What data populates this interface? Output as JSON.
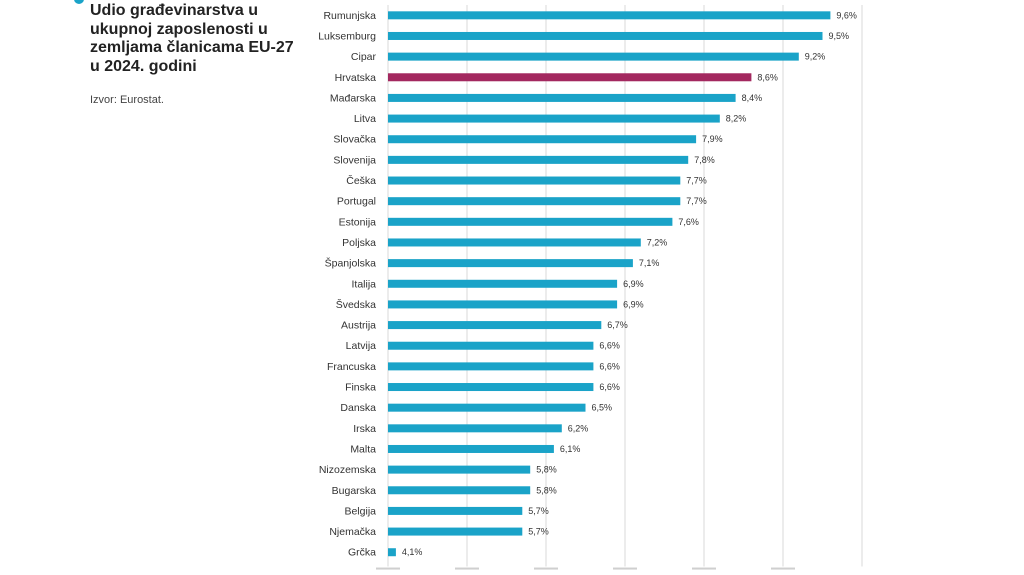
{
  "chart_data": {
    "type": "bar",
    "orientation": "horizontal",
    "title": "Udio građevinarstva u ukupnoj zaposlenosti u zemljama članicama EU-27 u 2024. godini",
    "source": "Izvor: Eurostat.",
    "categories": [
      "Rumunjska",
      "Luksemburg",
      "Cipar",
      "Hrvatska",
      "Mađarska",
      "Litva",
      "Slovačka",
      "Slovenija",
      "Češka",
      "Portugal",
      "Estonija",
      "Poljska",
      "Španjolska",
      "Italija",
      "Švedska",
      "Austrija",
      "Latvija",
      "Francuska",
      "Finska",
      "Danska",
      "Irska",
      "Malta",
      "Nizozemska",
      "Bugarska",
      "Belgija",
      "Njemačka",
      "Grčka"
    ],
    "values": [
      9.6,
      9.5,
      9.2,
      8.6,
      8.4,
      8.2,
      7.9,
      7.8,
      7.7,
      7.7,
      7.6,
      7.2,
      7.1,
      6.9,
      6.9,
      6.7,
      6.6,
      6.6,
      6.6,
      6.5,
      6.2,
      6.1,
      5.8,
      5.8,
      5.7,
      5.7,
      4.1
    ],
    "value_labels": [
      "9,6%",
      "9,5%",
      "9,2%",
      "8,6%",
      "8,4%",
      "8,2%",
      "7,9%",
      "7,8%",
      "7,7%",
      "7,7%",
      "7,6%",
      "7,2%",
      "7,1%",
      "6,9%",
      "6,9%",
      "6,7%",
      "6,6%",
      "6,6%",
      "6,6%",
      "6,5%",
      "6,2%",
      "6,1%",
      "5,8%",
      "5,8%",
      "5,7%",
      "5,7%",
      "4,1%"
    ],
    "highlight": "Hrvatska",
    "xlim": [
      4.0,
      10.0
    ],
    "grid": true,
    "xlabel": "",
    "ylabel": "",
    "colors": {
      "bar": "#1aa3c8",
      "highlight": "#a3285f",
      "grid": "#d9d9d9",
      "accent": "#1aa3c8"
    }
  }
}
